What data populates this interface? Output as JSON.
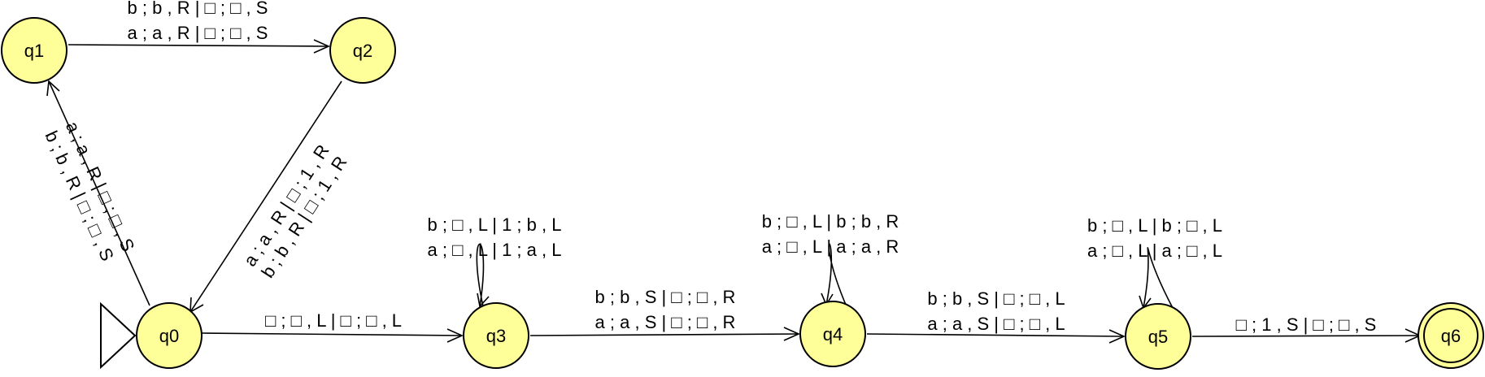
{
  "states": {
    "q0": "q0",
    "q1": "q1",
    "q2": "q2",
    "q3": "q3",
    "q4": "q4",
    "q5": "q5",
    "q6": "q6"
  },
  "transitions": {
    "q1_q2": [
      "b ; b , R | □ ; □ , S",
      "a ; a , R | □ ; □ , S"
    ],
    "q0_q1": [
      "a ; a , R | □ ; □ , S",
      "b ; b , R | □ ; □ , S"
    ],
    "q2_q0": [
      "a ; a , R | □ ; 1 , R",
      "b ; b , R | □ ; 1 , R"
    ],
    "q0_q3": [
      "□ ; □ , L | □ ; □ , L"
    ],
    "q3_loop": [
      "b ; □ , L | 1 ; b , L",
      "a ; □ , L | 1 ; a , L"
    ],
    "q3_q4": [
      "b ; b , S | □ ; □ , R",
      "a ; a , S | □ ; □ , R"
    ],
    "q4_loop": [
      "b ; □ , L | b ; b , R",
      "a ; □ , L | a ; a , R"
    ],
    "q4_q5": [
      "b ; b , S | □ ; □ , L",
      "a ; a , S | □ ; □ , L"
    ],
    "q5_loop": [
      "b ; □ , L | b ; □ , L",
      "a ; □ , L | a ; □ , L"
    ],
    "q5_q6": [
      "□ ; 1 , S | □ ; □ , S"
    ]
  },
  "initial_state": "q0",
  "accepting_state": "q6",
  "colors": {
    "state_fill": "#ffff99",
    "stroke": "#000000"
  }
}
